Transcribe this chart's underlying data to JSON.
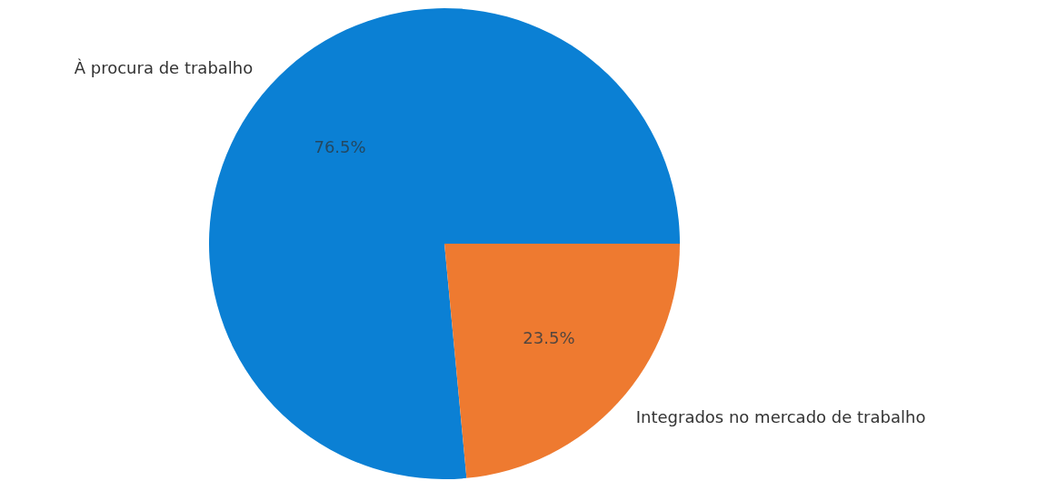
{
  "chart_data": {
    "type": "pie",
    "categories": [
      "À procura de trabalho",
      "Integrados no mercado de trabalho"
    ],
    "values": [
      76.5,
      23.5
    ],
    "colors": [
      "#0b80d4",
      "#ee7a30"
    ],
    "value_labels": [
      "76.5%",
      "23.5%"
    ]
  }
}
